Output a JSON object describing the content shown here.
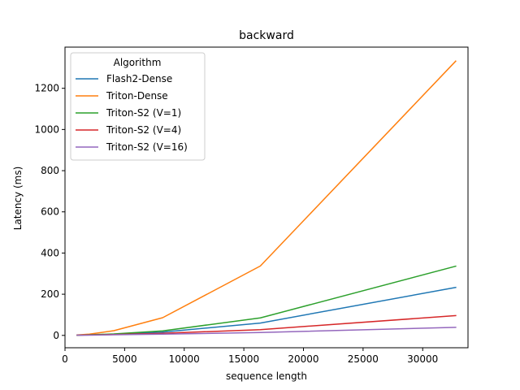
{
  "chart_data": {
    "type": "line",
    "title": "backward",
    "xlabel": "sequence length",
    "ylabel": "Latency (ms)",
    "xlim": [
      0,
      33800
    ],
    "ylim": [
      -60,
      1400
    ],
    "xticks": [
      0,
      5000,
      10000,
      15000,
      20000,
      25000,
      30000
    ],
    "yticks": [
      0,
      200,
      400,
      600,
      800,
      1000,
      1200
    ],
    "grid": false,
    "legend": {
      "title": "Algorithm",
      "placement": "top-left"
    },
    "x": [
      1024,
      2048,
      4096,
      8192,
      16384,
      32768
    ],
    "series": [
      {
        "name": "Flash2-Dense",
        "color": "#1f77b4",
        "values": [
          1,
          2,
          5,
          16,
          60,
          233
        ]
      },
      {
        "name": "Triton-Dense",
        "color": "#ff7f0e",
        "values": [
          2,
          6,
          23,
          86,
          337,
          1332
        ]
      },
      {
        "name": "Triton-S2 (V=1)",
        "color": "#2ca02c",
        "values": [
          1,
          3,
          7,
          22,
          85,
          336
        ]
      },
      {
        "name": "Triton-S2 (V=4)",
        "color": "#d62728",
        "values": [
          1,
          2,
          4,
          10,
          28,
          96
        ]
      },
      {
        "name": "Triton-S2 (V=16)",
        "color": "#9467bd",
        "values": [
          1,
          1,
          3,
          6,
          14,
          39
        ]
      }
    ]
  }
}
